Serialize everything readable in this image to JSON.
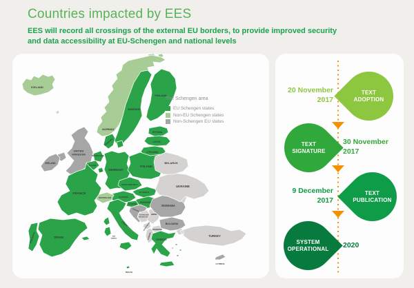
{
  "header": {
    "title": "Countries impacted by EES",
    "subtitle": "EES will record all crossings of the external EU borders, to provide improved security and data accessibility at EU-Schengen and national levels"
  },
  "colors": {
    "title_green": "#57b257",
    "subtitle_green": "#1ba24c",
    "orange": "#f39200",
    "groups": {
      "eu_schengen": "#2ba348",
      "non_eu_schengen": "#a8cc96",
      "non_schengen_eu": "#a6a6a6",
      "other": "#d4d3d1"
    }
  },
  "legend": {
    "title": "The Schengen area",
    "items": [
      {
        "label": "EU Schengen states",
        "color": "#2ba348"
      },
      {
        "label": "Non-EU Schengen states",
        "color": "#a8cc96"
      },
      {
        "label": "Non-Schengen EU states",
        "color": "#a6a6a6"
      }
    ]
  },
  "map": {
    "countries": [
      {
        "id": "iceland",
        "group": "non_eu_schengen",
        "label": "ICELAND"
      },
      {
        "id": "svalbard",
        "group": "non_eu_schengen",
        "label": ""
      },
      {
        "id": "norway",
        "group": "non_eu_schengen",
        "label": "NORWAY"
      },
      {
        "id": "sweden",
        "group": "eu_schengen",
        "label": "SWEDEN"
      },
      {
        "id": "finland",
        "group": "eu_schengen",
        "label": "FINLAND"
      },
      {
        "id": "estonia",
        "group": "eu_schengen",
        "label": "ESTONIA"
      },
      {
        "id": "latvia",
        "group": "eu_schengen",
        "label": "LATVIA"
      },
      {
        "id": "lithuania",
        "group": "eu_schengen",
        "label": "LITHUANIA"
      },
      {
        "id": "kaliningrad",
        "group": "other",
        "label": "RUSSIA"
      },
      {
        "id": "denmark",
        "group": "eu_schengen",
        "label": "DENMARK"
      },
      {
        "id": "uk",
        "group": "non_schengen_eu",
        "label": "UNITED\nKINGDOM"
      },
      {
        "id": "ireland",
        "group": "non_schengen_eu",
        "label": "IRELAND"
      },
      {
        "id": "faroes",
        "group": "other",
        "label": ""
      },
      {
        "id": "netherlands",
        "group": "eu_schengen",
        "label": "NETHERLANDS"
      },
      {
        "id": "belgium",
        "group": "eu_schengen",
        "label": "BELGIUM"
      },
      {
        "id": "luxembourg",
        "group": "eu_schengen",
        "label": "LUX."
      },
      {
        "id": "germany",
        "group": "eu_schengen",
        "label": "GERMANY"
      },
      {
        "id": "poland",
        "group": "eu_schengen",
        "label": "POLAND"
      },
      {
        "id": "czechia",
        "group": "eu_schengen",
        "label": "CZECH REPUBLIC"
      },
      {
        "id": "slovakia",
        "group": "eu_schengen",
        "label": "SLOVAKIA"
      },
      {
        "id": "austria",
        "group": "eu_schengen",
        "label": "AUSTRIA"
      },
      {
        "id": "hungary",
        "group": "eu_schengen",
        "label": "HUNGARY"
      },
      {
        "id": "switzerland",
        "group": "non_eu_schengen",
        "label": "SWITZERLAND"
      },
      {
        "id": "france",
        "group": "eu_schengen",
        "label": "FRANCE"
      },
      {
        "id": "corsica",
        "group": "eu_schengen",
        "label": ""
      },
      {
        "id": "spain",
        "group": "eu_schengen",
        "label": "SPAIN"
      },
      {
        "id": "balearics",
        "group": "eu_schengen",
        "label": ""
      },
      {
        "id": "portugal",
        "group": "eu_schengen",
        "label": "PORTUGAL"
      },
      {
        "id": "italy",
        "group": "eu_schengen",
        "label": "ITALY"
      },
      {
        "id": "sanmarino",
        "group": "eu_schengen",
        "label": "SAN\nMARINO"
      },
      {
        "id": "sicily",
        "group": "eu_schengen",
        "label": ""
      },
      {
        "id": "sardinia",
        "group": "eu_schengen",
        "label": ""
      },
      {
        "id": "malta",
        "group": "eu_schengen",
        "label": "MALTA"
      },
      {
        "id": "slovenia",
        "group": "eu_schengen",
        "label": "SLOVENIA"
      },
      {
        "id": "croatia",
        "group": "non_schengen_eu",
        "label": "CROATIA"
      },
      {
        "id": "bosnia",
        "group": "other",
        "label": "BOSNIA AND\nHERZEGOVINA"
      },
      {
        "id": "serbia",
        "group": "other",
        "label": "SERBIA"
      },
      {
        "id": "montenegro",
        "group": "other",
        "label": "MONTENEGRO"
      },
      {
        "id": "macedonia",
        "group": "other",
        "label": "MACEDONIA"
      },
      {
        "id": "albania",
        "group": "other",
        "label": "ALBANIA"
      },
      {
        "id": "greece",
        "group": "eu_schengen",
        "label": "GREECE"
      },
      {
        "id": "crete",
        "group": "eu_schengen",
        "label": ""
      },
      {
        "id": "aegean",
        "group": "eu_schengen",
        "label": ""
      },
      {
        "id": "bulgaria",
        "group": "non_schengen_eu",
        "label": "BULGARIA"
      },
      {
        "id": "romania",
        "group": "non_schengen_eu",
        "label": "ROMANIA"
      },
      {
        "id": "moldova",
        "group": "other",
        "label": "MOLDOVA"
      },
      {
        "id": "ukraine",
        "group": "other",
        "label": "UKRAINE"
      },
      {
        "id": "belarus",
        "group": "other",
        "label": "BELARUS"
      },
      {
        "id": "turkey",
        "group": "other",
        "label": "TURKEY"
      },
      {
        "id": "cyprus",
        "group": "non_schengen_eu",
        "label": "CYPRUS"
      }
    ]
  },
  "timeline": {
    "events": [
      {
        "date": "20 November 2017",
        "label": "TEXT ADOPTION",
        "color": "#8dc63f"
      },
      {
        "date": "30 November 2017",
        "label": "TEXT SIGNATURE",
        "color": "#31a83c"
      },
      {
        "date": "9 December 2017",
        "label": "TEXT PUBLICATION",
        "color": "#0e9c49"
      },
      {
        "date": "2020",
        "label": "SYSTEM OPERATIONAL",
        "color": "#077b3d"
      }
    ]
  }
}
